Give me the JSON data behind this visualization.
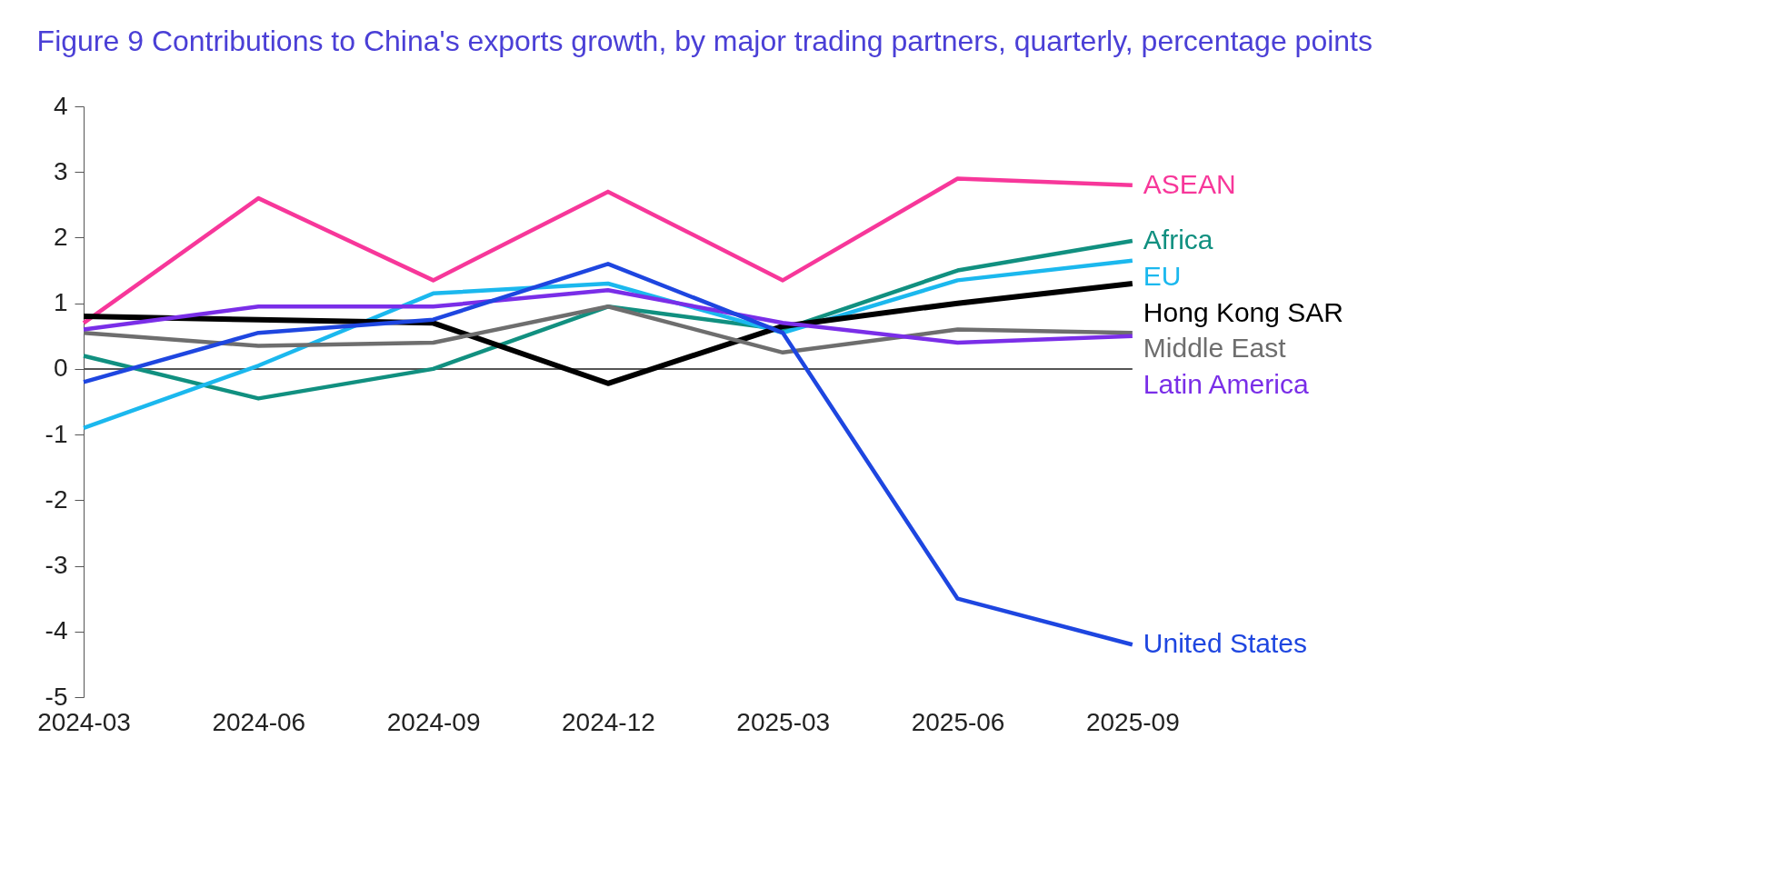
{
  "chart_data": {
    "type": "line",
    "title": "Figure 9 Contributions to China's exports growth, by major trading partners, quarterly, percentage points",
    "categories": [
      "2024-03",
      "2024-06",
      "2024-09",
      "2024-12",
      "2025-03",
      "2025-06",
      "2025-09"
    ],
    "series": [
      {
        "name": "ASEAN",
        "color": "#f7379a",
        "values": [
          0.7,
          2.6,
          1.35,
          2.7,
          1.35,
          2.9,
          2.8
        ]
      },
      {
        "name": "Africa",
        "color": "#119080",
        "values": [
          0.2,
          -0.45,
          0.0,
          0.95,
          0.6,
          1.5,
          1.95
        ]
      },
      {
        "name": "EU",
        "color": "#1bb8ee",
        "values": [
          -0.9,
          0.05,
          1.15,
          1.3,
          0.55,
          1.35,
          1.65
        ]
      },
      {
        "name": "Hong Kong SAR",
        "color": "#000000",
        "values": [
          0.8,
          0.75,
          0.7,
          -0.22,
          0.65,
          1.0,
          1.3
        ]
      },
      {
        "name": "Middle East",
        "color": "#6e6e6e",
        "values": [
          0.55,
          0.35,
          0.4,
          0.95,
          0.25,
          0.6,
          0.55
        ]
      },
      {
        "name": "Latin America",
        "color": "#7a2ee8",
        "values": [
          0.6,
          0.95,
          0.95,
          1.2,
          0.7,
          0.4,
          0.5
        ]
      },
      {
        "name": "United States",
        "color": "#1e46e0",
        "values": [
          -0.2,
          0.55,
          0.75,
          1.6,
          0.55,
          -3.5,
          -4.2
        ]
      }
    ],
    "ylim": [
      -5,
      4
    ],
    "yticks": [
      -5,
      -4,
      -3,
      -2,
      -1,
      0,
      1,
      2,
      3,
      4
    ],
    "ref_lines": [
      {
        "axis": "y",
        "value": 0,
        "label": null,
        "color": "#555555"
      }
    ],
    "grid": false,
    "legend": "right",
    "marker": "none",
    "line_style": "solid"
  }
}
